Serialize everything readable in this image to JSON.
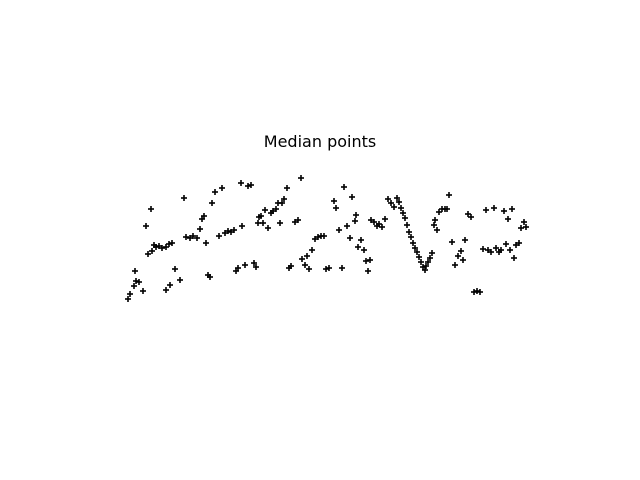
{
  "chart_data": {
    "type": "scatter",
    "title": "Median points",
    "xlabel": "",
    "ylabel": "",
    "axes_visible": false,
    "grid": false,
    "marker": "plus",
    "marker_color": "#000000",
    "xlim": [
      120,
      530
    ],
    "ylim": [
      175,
      305
    ],
    "y_inverted": true,
    "points": [
      [
        128,
        299
      ],
      [
        130,
        294
      ],
      [
        134,
        286
      ],
      [
        136,
        281
      ],
      [
        135,
        271
      ],
      [
        139,
        282
      ],
      [
        143,
        291
      ],
      [
        146,
        226
      ],
      [
        148,
        254
      ],
      [
        151,
        209
      ],
      [
        152,
        251
      ],
      [
        154,
        245
      ],
      [
        156,
        247
      ],
      [
        159,
        246
      ],
      [
        162,
        248
      ],
      [
        166,
        247
      ],
      [
        169,
        244
      ],
      [
        172,
        243
      ],
      [
        166,
        290
      ],
      [
        170,
        285
      ],
      [
        175,
        269
      ],
      [
        180,
        280
      ],
      [
        184,
        198
      ],
      [
        186,
        237
      ],
      [
        190,
        238
      ],
      [
        193,
        236
      ],
      [
        197,
        238
      ],
      [
        200,
        229
      ],
      [
        202,
        219
      ],
      [
        204,
        216
      ],
      [
        206,
        243
      ],
      [
        208,
        275
      ],
      [
        210,
        277
      ],
      [
        212,
        203
      ],
      [
        215,
        192
      ],
      [
        219,
        236
      ],
      [
        222,
        188
      ],
      [
        225,
        233
      ],
      [
        228,
        231
      ],
      [
        231,
        232
      ],
      [
        234,
        230
      ],
      [
        236,
        271
      ],
      [
        238,
        268
      ],
      [
        241,
        183
      ],
      [
        242,
        226
      ],
      [
        245,
        265
      ],
      [
        248,
        186
      ],
      [
        251,
        185
      ],
      [
        254,
        263
      ],
      [
        256,
        267
      ],
      [
        258,
        223
      ],
      [
        259,
        217
      ],
      [
        261,
        216
      ],
      [
        263,
        223
      ],
      [
        265,
        210
      ],
      [
        268,
        228
      ],
      [
        271,
        213
      ],
      [
        273,
        211
      ],
      [
        276,
        209
      ],
      [
        278,
        203
      ],
      [
        280,
        223
      ],
      [
        282,
        203
      ],
      [
        284,
        199
      ],
      [
        287,
        188
      ],
      [
        289,
        268
      ],
      [
        291,
        266
      ],
      [
        295,
        222
      ],
      [
        298,
        220
      ],
      [
        301,
        178
      ],
      [
        302,
        259
      ],
      [
        305,
        265
      ],
      [
        307,
        256
      ],
      [
        309,
        269
      ],
      [
        312,
        250
      ],
      [
        315,
        239
      ],
      [
        318,
        237
      ],
      [
        321,
        236
      ],
      [
        324,
        236
      ],
      [
        326,
        269
      ],
      [
        329,
        268
      ],
      [
        334,
        201
      ],
      [
        336,
        208
      ],
      [
        339,
        230
      ],
      [
        342,
        268
      ],
      [
        344,
        187
      ],
      [
        347,
        226
      ],
      [
        350,
        238
      ],
      [
        352,
        197
      ],
      [
        355,
        221
      ],
      [
        356,
        215
      ],
      [
        358,
        247
      ],
      [
        361,
        240
      ],
      [
        364,
        250
      ],
      [
        366,
        261
      ],
      [
        368,
        271
      ],
      [
        370,
        260
      ],
      [
        371,
        220
      ],
      [
        374,
        222
      ],
      [
        377,
        226
      ],
      [
        379,
        224
      ],
      [
        382,
        227
      ],
      [
        385,
        219
      ],
      [
        388,
        199
      ],
      [
        391,
        203
      ],
      [
        394,
        207
      ],
      [
        397,
        198
      ],
      [
        399,
        202
      ],
      [
        401,
        208
      ],
      [
        403,
        213
      ],
      [
        405,
        218
      ],
      [
        407,
        225
      ],
      [
        409,
        232
      ],
      [
        411,
        237
      ],
      [
        413,
        243
      ],
      [
        415,
        248
      ],
      [
        417,
        252
      ],
      [
        419,
        257
      ],
      [
        421,
        262
      ],
      [
        423,
        267
      ],
      [
        425,
        270
      ],
      [
        426,
        266
      ],
      [
        428,
        262
      ],
      [
        430,
        258
      ],
      [
        432,
        253
      ],
      [
        434,
        225
      ],
      [
        435,
        220
      ],
      [
        437,
        230
      ],
      [
        439,
        212
      ],
      [
        442,
        209
      ],
      [
        445,
        209
      ],
      [
        447,
        209
      ],
      [
        449,
        195
      ],
      [
        452,
        242
      ],
      [
        455,
        265
      ],
      [
        458,
        256
      ],
      [
        461,
        251
      ],
      [
        463,
        260
      ],
      [
        465,
        240
      ],
      [
        468,
        214
      ],
      [
        471,
        217
      ],
      [
        474,
        292
      ],
      [
        477,
        291
      ],
      [
        480,
        292
      ],
      [
        483,
        249
      ],
      [
        486,
        210
      ],
      [
        488,
        250
      ],
      [
        491,
        252
      ],
      [
        494,
        208
      ],
      [
        496,
        248
      ],
      [
        499,
        252
      ],
      [
        501,
        250
      ],
      [
        504,
        211
      ],
      [
        506,
        244
      ],
      [
        508,
        219
      ],
      [
        510,
        250
      ],
      [
        512,
        209
      ],
      [
        514,
        258
      ],
      [
        516,
        245
      ],
      [
        519,
        243
      ],
      [
        521,
        228
      ],
      [
        524,
        222
      ],
      [
        526,
        227
      ]
    ]
  }
}
